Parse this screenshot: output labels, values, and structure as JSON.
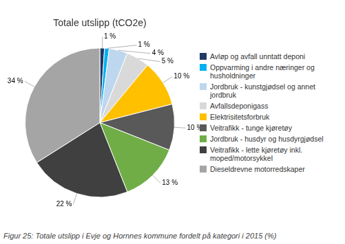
{
  "chart_data": {
    "type": "pie",
    "title": "Totale utslipp (tCO2e)",
    "caption": "Figur 25: Totale utslipp i Evje og Hornnes kommune fordelt på kategori i 2015 (%)",
    "categories": [
      "Avløp og avfall unntatt deponi",
      "Oppvarming i andre næringer og\nhusholdninger",
      "Jordbruk - kunstgjødsel og annet\njordbruk",
      "Avfallsdeponigass",
      "Elektrisitetsforbruk",
      "Veitrafikk - tunge kjøretøy",
      "Jordbruk - husdyr og husdyrgjødsel",
      "Veitrafikk - lette kjøretøy inkl.\nmoped/motorsykkel",
      "Dieseldrevne motorredskaper"
    ],
    "values": [
      1,
      1,
      4,
      5,
      10,
      10,
      13,
      22,
      34
    ],
    "value_labels": [
      "1 %",
      "1 %",
      "4 %",
      "5 %",
      "10 %",
      "10 %",
      "13 %",
      "22 %",
      "34 %"
    ],
    "colors": [
      "#1F3864",
      "#00B0F0",
      "#BDD7EE",
      "#D9D9D9",
      "#FFC000",
      "#595959",
      "#70AD47",
      "#404040",
      "#A5A5A5"
    ],
    "data_labels": true,
    "legend": "right"
  }
}
